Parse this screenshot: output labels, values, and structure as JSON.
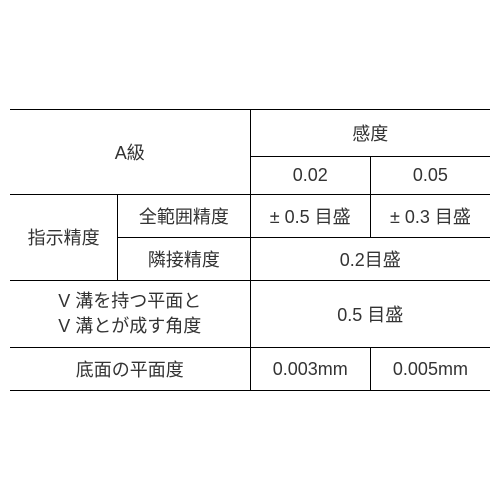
{
  "table": {
    "header": {
      "grade": "A級",
      "sensitivity": "感度",
      "sens_col1": "0.02",
      "sens_col2": "0.05"
    },
    "rows": {
      "indication_accuracy": {
        "label": "指示精度",
        "full_range": {
          "label": "全範囲精度",
          "val1": "± 0.5 目盛",
          "val2": "± 0.3 目盛"
        },
        "adjacent": {
          "label": "隣接精度",
          "val": "0.2目盛"
        }
      },
      "v_groove": {
        "label_line1": "V 溝を持つ平面と",
        "label_line2": "V 溝とが成す角度",
        "val": "0.5 目盛"
      },
      "flatness": {
        "label": "底面の平面度",
        "val1": "0.003mm",
        "val2": "0.005mm"
      }
    },
    "colors": {
      "border": "#000000",
      "text": "#333333",
      "background": "#ffffff"
    },
    "font_size": 18
  }
}
